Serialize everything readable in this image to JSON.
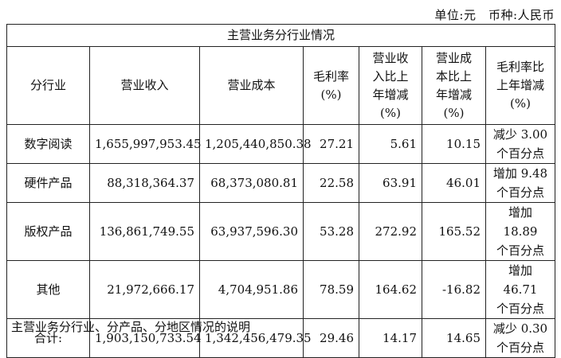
{
  "unit_note": "单位:元　币种:人民币",
  "table_title": "主营业务分行业情况",
  "headers": [
    [
      "分行业"
    ],
    [
      "营业收入"
    ],
    [
      "营业成本"
    ],
    [
      "毛利率",
      "(%)"
    ],
    [
      "营业收",
      "入比上",
      "年增减",
      "(%)"
    ],
    [
      "营业成",
      "本比上",
      "年增减",
      "(%)"
    ],
    [
      "毛利率比",
      "上年增减",
      "(%)"
    ]
  ],
  "rows": [
    {
      "industry": "数字阅读",
      "revenue": "1,655,997,953.45",
      "cost": "1,205,440,850.38",
      "gross_margin": "27.21",
      "revenue_change": "5.61",
      "cost_change": "10.15",
      "margin_change": [
        "减少 3.00",
        "个百分点"
      ]
    },
    {
      "industry": "硬件产品",
      "revenue": "88,318,364.37",
      "cost": "68,373,080.81",
      "gross_margin": "22.58",
      "revenue_change": "63.91",
      "cost_change": "46.01",
      "margin_change": [
        "增加 9.48",
        "个百分点"
      ]
    },
    {
      "industry": "版权产品",
      "revenue": "136,861,749.55",
      "cost": "63,937,596.30",
      "gross_margin": "53.28",
      "revenue_change": "272.92",
      "cost_change": "165.52",
      "margin_change": [
        "增加 18.89",
        "个百分点"
      ]
    },
    {
      "industry": "其他",
      "revenue": "21,972,666.17",
      "cost": "4,704,951.86",
      "gross_margin": "78.59",
      "revenue_change": "164.62",
      "cost_change": "-16.82",
      "margin_change": [
        "增加 46.71",
        "个百分点"
      ]
    },
    {
      "industry": "合计:",
      "revenue": "1,903,150,733.54",
      "cost": "1,342,456,479.35",
      "gross_margin": "29.46",
      "revenue_change": "14.17",
      "cost_change": "14.65",
      "margin_change": [
        "减少 0.30",
        "个百分点"
      ]
    }
  ],
  "footer_text": "主营业务分行业、分产品、分地区情况的说明"
}
